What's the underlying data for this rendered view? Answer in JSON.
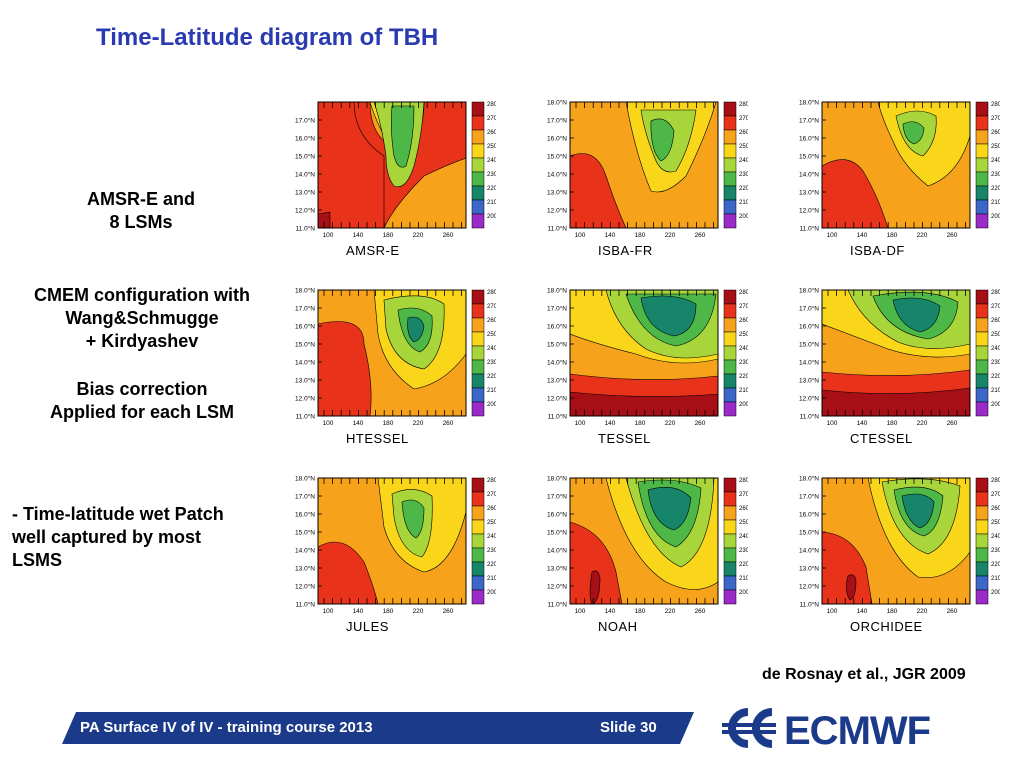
{
  "title": "Time-Latitude diagram of TBH",
  "sidebar": {
    "block1": [
      "AMSR-E and",
      "8 LSMs"
    ],
    "block2": [
      "CMEM configuration with",
      "Wang&Schmugge",
      "+ Kirdyashev"
    ],
    "block3": [
      "Bias correction",
      "Applied for each LSM"
    ],
    "block4": [
      "- Time-latitude wet Patch",
      "well captured by most",
      "LSMS"
    ]
  },
  "panels": [
    {
      "label": "AMSR-E"
    },
    {
      "label": "ISBA-FR"
    },
    {
      "label": "ISBA-DF"
    },
    {
      "label": "HTESSEL"
    },
    {
      "label": "TESSEL"
    },
    {
      "label": "CTESSEL"
    },
    {
      "label": "JULES"
    },
    {
      "label": "NOAH"
    },
    {
      "label": "ORCHIDEE"
    }
  ],
  "axes": {
    "y_ticks": [
      "18.0°N",
      "17.0°N",
      "16.0°N",
      "15.0°N",
      "14.0°N",
      "13.0°N",
      "12.0°N",
      "11.0°N"
    ],
    "x_ticks": [
      "100",
      "140",
      "180",
      "220",
      "260"
    ]
  },
  "colorbar": {
    "levels": [
      "280",
      "270",
      "260",
      "250",
      "240",
      "230",
      "220",
      "210",
      "200"
    ],
    "colors": [
      "#a50f15",
      "#e8321a",
      "#f7a21b",
      "#f9d61a",
      "#a8d53a",
      "#4db848",
      "#17856a",
      "#3a67c8",
      "#9b2bc8"
    ]
  },
  "citation": "de Rosnay et al., JGR 2009",
  "footer": {
    "course": "PA Surface IV of IV - training course 2013",
    "slide": "Slide 30",
    "logo": "ECMWF"
  }
}
